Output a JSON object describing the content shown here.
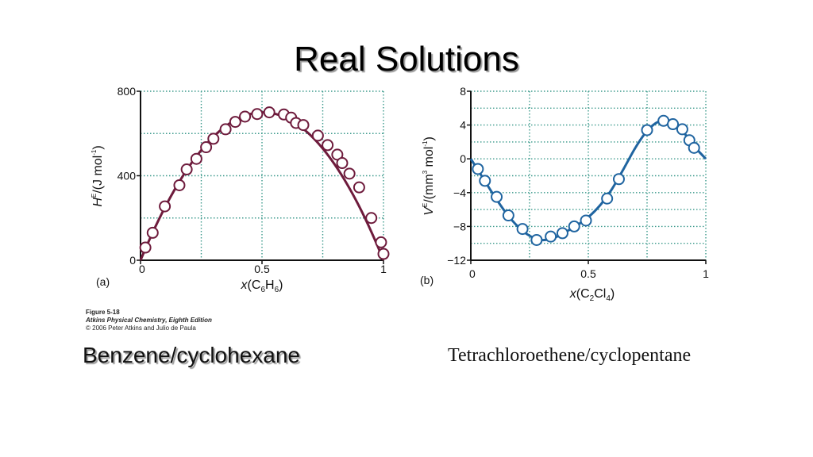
{
  "slide": {
    "title": "Real Solutions",
    "caption_left": "Benzene/cyclohexane",
    "caption_right": "Tetrachloroethene/cyclopentane",
    "credit": {
      "line1": "Figure 5-18",
      "line2": "Atkins Physical Chemistry, Eighth Edition",
      "line3": "© 2006 Peter Atkins and Julio de Paula"
    }
  },
  "chart_data": [
    {
      "type": "line",
      "panel_label": "(a)",
      "xlabel": {
        "var": "x",
        "open": "(C",
        "sub1": "6",
        "mid": "H",
        "sub2": "6",
        "close": ")"
      },
      "ylabel": {
        "var": "H",
        "sup": "E",
        "rest": "/(J mol",
        "sup2": "-1",
        "close": ")"
      },
      "xlim": [
        0,
        1
      ],
      "ylim": [
        0,
        800
      ],
      "xticks": [
        0,
        0.5,
        1
      ],
      "xtick_labels": [
        "0",
        "0.5",
        "1"
      ],
      "yticks": [
        0,
        400,
        800
      ],
      "ytick_labels": [
        "0",
        "400",
        "800"
      ],
      "grid": true,
      "color": "#6e1b3c",
      "series": [
        {
          "points": [
            {
              "x": 0.02,
              "y": 60
            },
            {
              "x": 0.05,
              "y": 130
            },
            {
              "x": 0.1,
              "y": 255
            },
            {
              "x": 0.16,
              "y": 355
            },
            {
              "x": 0.19,
              "y": 430
            },
            {
              "x": 0.23,
              "y": 480
            },
            {
              "x": 0.27,
              "y": 535
            },
            {
              "x": 0.3,
              "y": 575
            },
            {
              "x": 0.35,
              "y": 620
            },
            {
              "x": 0.39,
              "y": 655
            },
            {
              "x": 0.43,
              "y": 680
            },
            {
              "x": 0.48,
              "y": 692
            },
            {
              "x": 0.53,
              "y": 700
            },
            {
              "x": 0.59,
              "y": 690
            },
            {
              "x": 0.62,
              "y": 675
            },
            {
              "x": 0.64,
              "y": 650
            },
            {
              "x": 0.67,
              "y": 640
            },
            {
              "x": 0.73,
              "y": 590
            },
            {
              "x": 0.77,
              "y": 545
            },
            {
              "x": 0.81,
              "y": 500
            },
            {
              "x": 0.83,
              "y": 460
            },
            {
              "x": 0.86,
              "y": 410
            },
            {
              "x": 0.9,
              "y": 345
            },
            {
              "x": 0.95,
              "y": 200
            },
            {
              "x": 0.99,
              "y": 85
            },
            {
              "x": 1.0,
              "y": 30
            }
          ]
        }
      ]
    },
    {
      "type": "line",
      "panel_label": "(b)",
      "xlabel": {
        "var": "x",
        "open": "(C",
        "sub1": "2",
        "mid": "Cl",
        "sub2": "4",
        "close": ")"
      },
      "ylabel": {
        "var": "V",
        "sup": "E",
        "rest": "/(mm",
        "sup2": "3",
        "mid": " mol",
        "sup3": "-1",
        "close": ")"
      },
      "xlim": [
        0,
        1
      ],
      "ylim": [
        -12,
        8
      ],
      "xticks": [
        0,
        0.5,
        1
      ],
      "xtick_labels": [
        "0",
        "0.5",
        "1"
      ],
      "yticks": [
        -12,
        -8,
        -4,
        0,
        4,
        8
      ],
      "ytick_labels": [
        "−12",
        "−8",
        "−4",
        "0",
        "4",
        "8"
      ],
      "grid": true,
      "color": "#1f64a0",
      "series": [
        {
          "points": [
            {
              "x": 0.03,
              "y": -1.2
            },
            {
              "x": 0.06,
              "y": -2.6
            },
            {
              "x": 0.11,
              "y": -4.5
            },
            {
              "x": 0.16,
              "y": -6.7
            },
            {
              "x": 0.22,
              "y": -8.3
            },
            {
              "x": 0.28,
              "y": -9.6
            },
            {
              "x": 0.34,
              "y": -9.2
            },
            {
              "x": 0.39,
              "y": -8.8
            },
            {
              "x": 0.44,
              "y": -8.0
            },
            {
              "x": 0.49,
              "y": -7.3
            },
            {
              "x": 0.58,
              "y": -4.7
            },
            {
              "x": 0.63,
              "y": -2.4
            },
            {
              "x": 0.75,
              "y": 3.4
            },
            {
              "x": 0.82,
              "y": 4.5
            },
            {
              "x": 0.86,
              "y": 4.1
            },
            {
              "x": 0.9,
              "y": 3.5
            },
            {
              "x": 0.93,
              "y": 2.2
            },
            {
              "x": 0.95,
              "y": 1.3
            }
          ],
          "curve": [
            {
              "x": 0.0,
              "y": 0.0
            },
            {
              "x": 0.05,
              "y": -2.2
            },
            {
              "x": 0.1,
              "y": -4.4
            },
            {
              "x": 0.15,
              "y": -6.4
            },
            {
              "x": 0.2,
              "y": -8.0
            },
            {
              "x": 0.25,
              "y": -9.1
            },
            {
              "x": 0.3,
              "y": -9.6
            },
            {
              "x": 0.35,
              "y": -9.4
            },
            {
              "x": 0.4,
              "y": -8.7
            },
            {
              "x": 0.45,
              "y": -7.9
            },
            {
              "x": 0.5,
              "y": -6.9
            },
            {
              "x": 0.55,
              "y": -5.5
            },
            {
              "x": 0.6,
              "y": -3.6
            },
            {
              "x": 0.65,
              "y": -1.2
            },
            {
              "x": 0.7,
              "y": 1.3
            },
            {
              "x": 0.75,
              "y": 3.3
            },
            {
              "x": 0.8,
              "y": 4.4
            },
            {
              "x": 0.85,
              "y": 4.3
            },
            {
              "x": 0.9,
              "y": 3.3
            },
            {
              "x": 0.95,
              "y": 1.5
            },
            {
              "x": 1.0,
              "y": 0.0
            }
          ]
        }
      ]
    }
  ]
}
